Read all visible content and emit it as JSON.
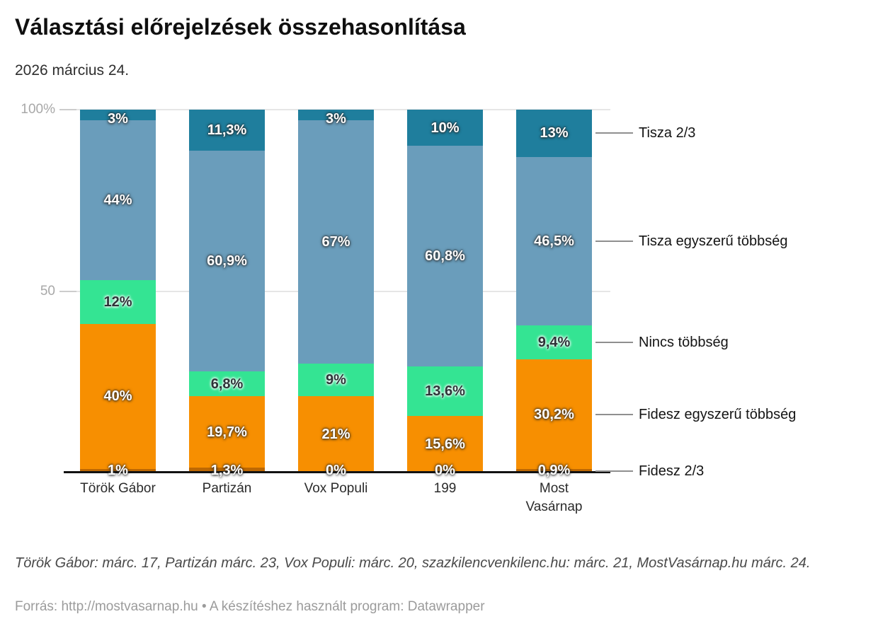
{
  "header": {
    "title": "Választási előrejelzések összehasonlítása",
    "subtitle": "2026 március 24."
  },
  "chart_data": {
    "type": "bar",
    "stacked": true,
    "unit": "%",
    "title": "Választási előrejelzések összehasonlítása",
    "subtitle": "2026 március 24.",
    "ylim": [
      0,
      100
    ],
    "grid": "horizontal",
    "legend_position": "right",
    "yticks": [
      {
        "value": 100,
        "label": "100%"
      },
      {
        "value": 50,
        "label": "50"
      }
    ],
    "categories": [
      {
        "name": "Török Gábor",
        "label": "Török Gábor"
      },
      {
        "name": "Partizán",
        "label": "Partizán"
      },
      {
        "name": "Vox Populi",
        "label": "Vox Populi"
      },
      {
        "name": "199",
        "label": "199"
      },
      {
        "name": "Most Vasárnap",
        "label": "Most\nVasárnap"
      }
    ],
    "series": [
      {
        "name": "Fidesz 2/3",
        "color": "#bd6803",
        "label_style": "light",
        "anchor": "baseline",
        "values": [
          1,
          1.3,
          0,
          0,
          0.9
        ],
        "value_labels": [
          "1%",
          "1,3%",
          "0%",
          "0%",
          "0,9%"
        ]
      },
      {
        "name": "Fidesz egyszerű többség",
        "color": "#f78f01",
        "label_style": "light",
        "values": [
          40,
          19.7,
          21,
          15.6,
          30.2
        ],
        "value_labels": [
          "40%",
          "19,7%",
          "21%",
          "15,6%",
          "30,2%"
        ]
      },
      {
        "name": "Nincs többség",
        "color": "#34e493",
        "label_style": "dark",
        "values": [
          12,
          6.8,
          9,
          13.6,
          9.4
        ],
        "value_labels": [
          "12%",
          "6,8%",
          "9%",
          "13,6%",
          "9,4%"
        ]
      },
      {
        "name": "Tisza egyszerű többség",
        "color": "#6a9dbb",
        "label_style": "light",
        "values": [
          44,
          60.9,
          67,
          60.8,
          46.5
        ],
        "value_labels": [
          "44%",
          "60,9%",
          "67%",
          "60,8%",
          "46,5%"
        ]
      },
      {
        "name": "Tisza 2/3",
        "color": "#1f7e9d",
        "label_style": "light",
        "values": [
          3,
          11.3,
          3,
          10,
          13
        ],
        "value_labels": [
          "3%",
          "11,3%",
          "3%",
          "10%",
          "13%"
        ]
      }
    ],
    "legend_order": [
      "Tisza 2/3",
      "Tisza egyszerű többség",
      "Nincs többség",
      "Fidesz egyszerű többség",
      "Fidesz 2/3"
    ]
  },
  "footer": {
    "note": "Török Gábor: márc. 17, Partizán márc. 23, Vox Populi: márc. 20, szazkilencvenkilenc.hu: márc. 21, MostVasárnap.hu márc. 24.",
    "source": "Forrás: http://mostvasarnap.hu • A készítéshez használt program: Datawrapper"
  }
}
